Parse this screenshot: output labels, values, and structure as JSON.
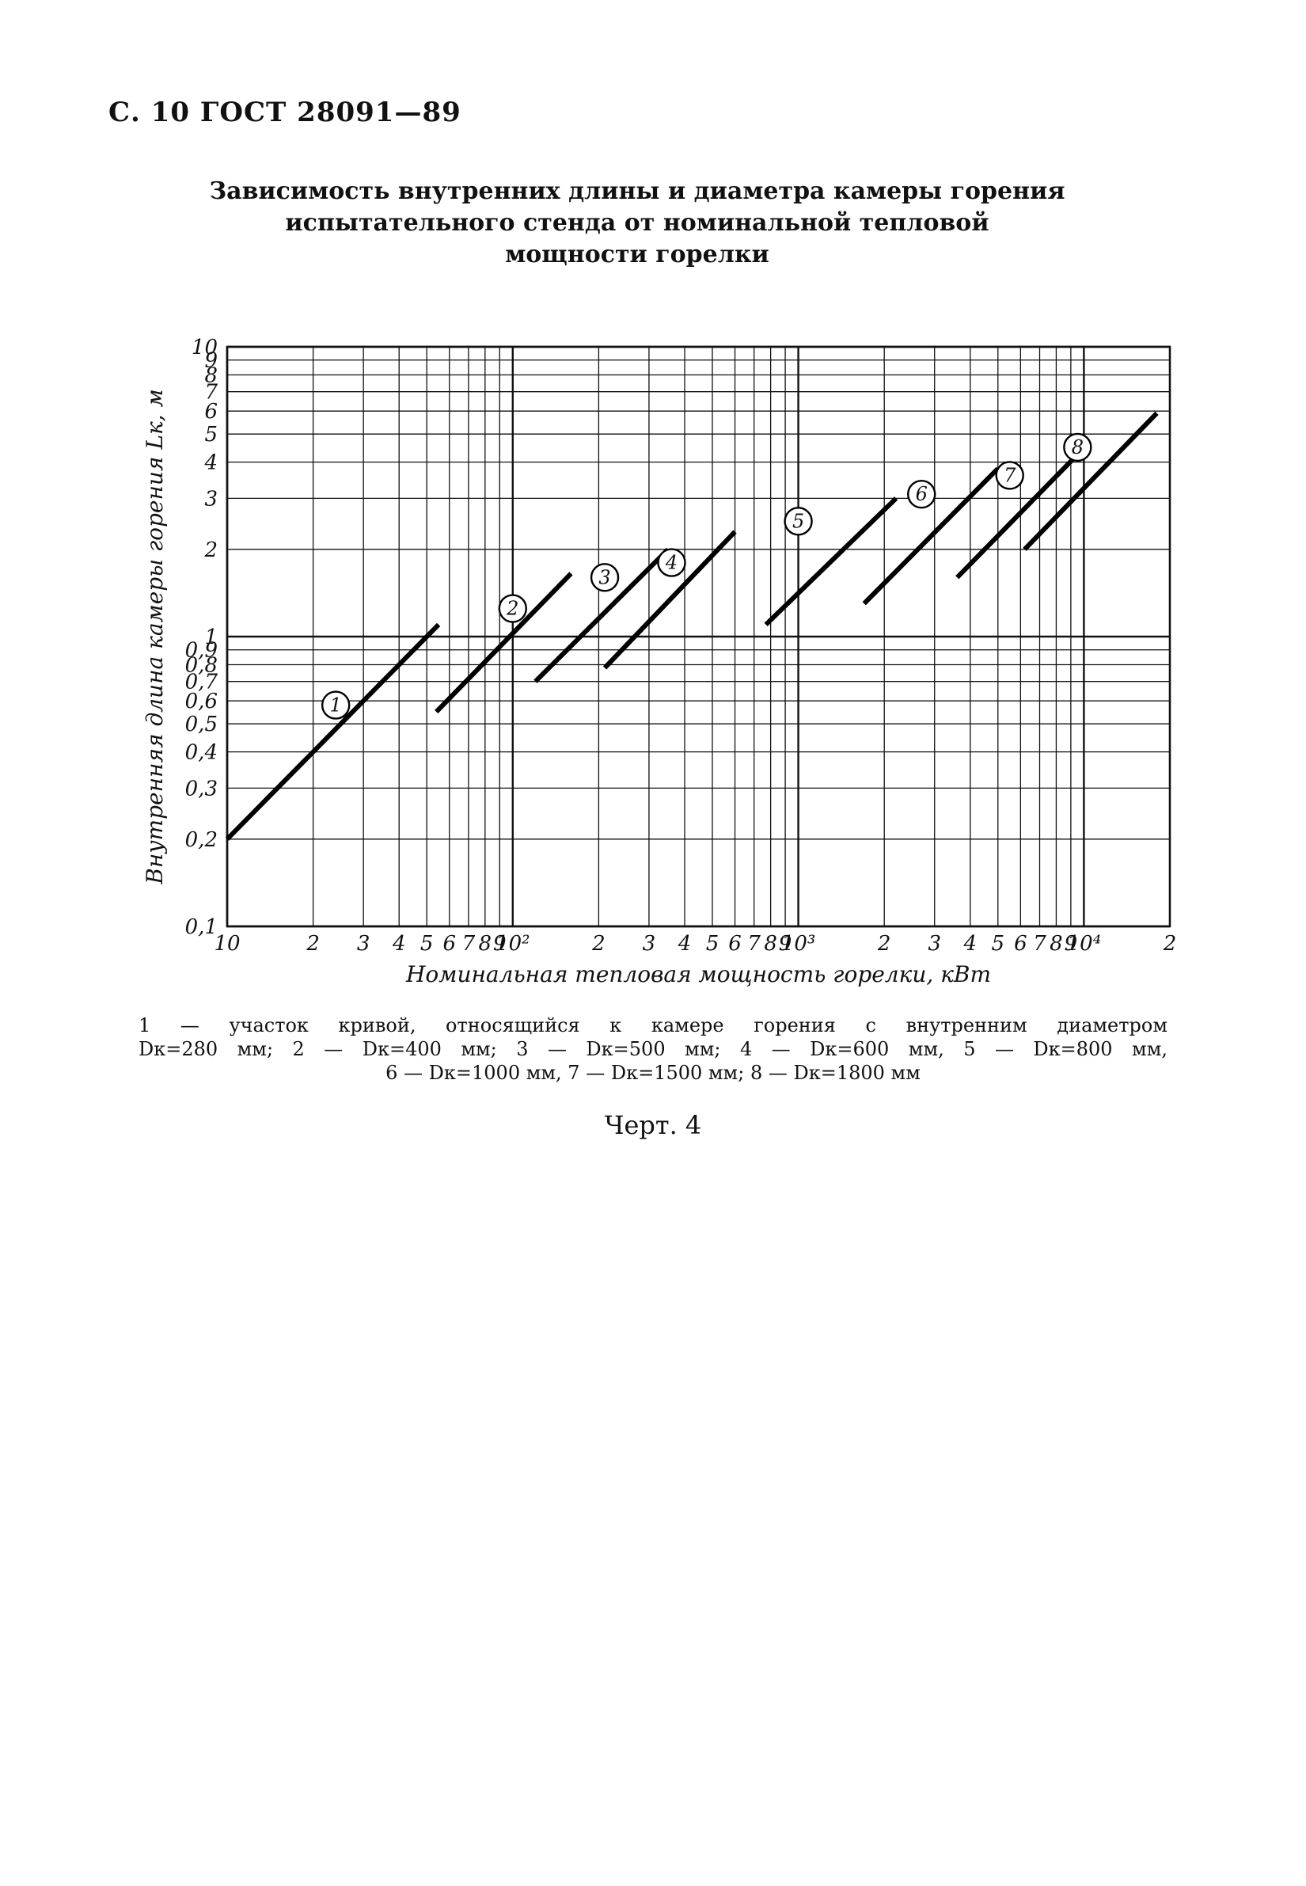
{
  "header": {
    "text": "С. 10 ГОСТ 28091—89"
  },
  "title": {
    "line1": "Зависимость внутренних длины и диаметра камеры горения",
    "line2": "испытательного стенда от номинальной тепловой",
    "line3": "мощности горелки"
  },
  "chart_data": {
    "type": "line",
    "xscale": "log",
    "yscale": "log",
    "xlim": [
      10,
      20000
    ],
    "ylim": [
      0.1,
      10
    ],
    "grid": true,
    "xlabel": "Номинальная тепловая мощность горелки, кВт",
    "ylabel": "Внутренняя длина камеры горения Lк, м",
    "x_ticks": [
      {
        "value": 10,
        "label": "10"
      },
      {
        "value": 20,
        "label": "2"
      },
      {
        "value": 30,
        "label": "3"
      },
      {
        "value": 40,
        "label": "4"
      },
      {
        "value": 50,
        "label": "5"
      },
      {
        "value": 60,
        "label": "6"
      },
      {
        "value": 70,
        "label": "7"
      },
      {
        "value": 80,
        "label": "8"
      },
      {
        "value": 90,
        "label": "9"
      },
      {
        "value": 100,
        "label": "10²"
      },
      {
        "value": 200,
        "label": "2"
      },
      {
        "value": 300,
        "label": "3"
      },
      {
        "value": 400,
        "label": "4"
      },
      {
        "value": 500,
        "label": "5"
      },
      {
        "value": 600,
        "label": "6"
      },
      {
        "value": 700,
        "label": "7"
      },
      {
        "value": 800,
        "label": "8"
      },
      {
        "value": 900,
        "label": "9"
      },
      {
        "value": 1000,
        "label": "10³"
      },
      {
        "value": 2000,
        "label": "2"
      },
      {
        "value": 3000,
        "label": "3"
      },
      {
        "value": 4000,
        "label": "4"
      },
      {
        "value": 5000,
        "label": "5"
      },
      {
        "value": 6000,
        "label": "6"
      },
      {
        "value": 7000,
        "label": "7"
      },
      {
        "value": 8000,
        "label": "8"
      },
      {
        "value": 9000,
        "label": "9"
      },
      {
        "value": 10000,
        "label": "10⁴"
      },
      {
        "value": 20000,
        "label": "2"
      }
    ],
    "y_ticks": [
      {
        "value": 0.1,
        "label": "0,1"
      },
      {
        "value": 0.2,
        "label": "0,2"
      },
      {
        "value": 0.3,
        "label": "0,3"
      },
      {
        "value": 0.4,
        "label": "0,4"
      },
      {
        "value": 0.5,
        "label": "0,5"
      },
      {
        "value": 0.6,
        "label": "0,6"
      },
      {
        "value": 0.7,
        "label": "0,7"
      },
      {
        "value": 0.8,
        "label": "0,8"
      },
      {
        "value": 0.9,
        "label": "0,9"
      },
      {
        "value": 1,
        "label": "1"
      },
      {
        "value": 2,
        "label": "2"
      },
      {
        "value": 3,
        "label": "3"
      },
      {
        "value": 4,
        "label": "4"
      },
      {
        "value": 5,
        "label": "5"
      },
      {
        "value": 6,
        "label": "6"
      },
      {
        "value": 7,
        "label": "7"
      },
      {
        "value": 8,
        "label": "8"
      },
      {
        "value": 9,
        "label": "9"
      },
      {
        "value": 10,
        "label": "10"
      }
    ],
    "series": [
      {
        "name": "1",
        "x": [
          10,
          55
        ],
        "y": [
          0.2,
          1.1
        ],
        "label_at": [
          24,
          0.58
        ]
      },
      {
        "name": "2",
        "x": [
          54,
          160
        ],
        "y": [
          0.55,
          1.65
        ],
        "label_at": [
          100,
          1.25
        ]
      },
      {
        "name": "3",
        "x": [
          120,
          350
        ],
        "y": [
          0.7,
          2.0
        ],
        "label_at": [
          210,
          1.6
        ]
      },
      {
        "name": "4",
        "x": [
          210,
          600
        ],
        "y": [
          0.78,
          2.3
        ],
        "label_at": [
          360,
          1.8
        ]
      },
      {
        "name": "5",
        "x": [
          770,
          2200
        ],
        "y": [
          1.1,
          3.0
        ],
        "label_at": [
          1000,
          2.5
        ]
      },
      {
        "name": "6",
        "x": [
          1700,
          5000
        ],
        "y": [
          1.3,
          3.8
        ],
        "label_at": [
          2700,
          3.1
        ]
      },
      {
        "name": "7",
        "x": [
          3600,
          10500
        ],
        "y": [
          1.6,
          4.7
        ],
        "label_at": [
          5500,
          3.6
        ]
      },
      {
        "name": "8",
        "x": [
          6200,
          18000
        ],
        "y": [
          2.0,
          5.9
        ],
        "label_at": [
          9500,
          4.5
        ]
      }
    ]
  },
  "caption": {
    "line1": "1 — участок кривой, относящийся к камере горения с внутренним диаметром",
    "line2": "Dк=280 мм; 2 — Dк=400 мм; 3 — Dк=500 мм; 4 — Dк=600 мм, 5 — Dк=800 мм,",
    "line3": "6 — Dк=1000 мм, 7 — Dк=1500 мм; 8 — Dк=1800 мм"
  },
  "figure": {
    "label": "Черт. 4"
  }
}
